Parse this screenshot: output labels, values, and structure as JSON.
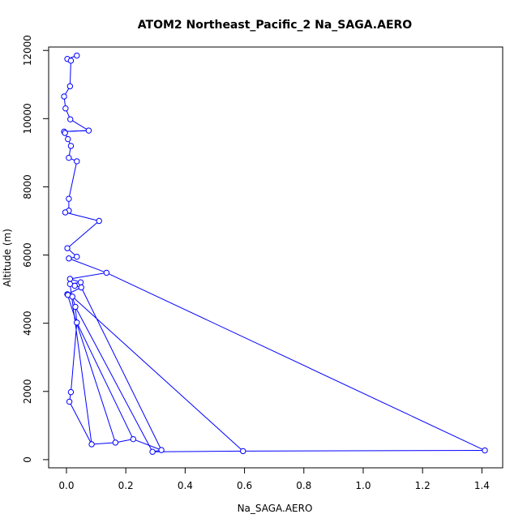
{
  "chart_data": {
    "type": "line",
    "title": "ATOM2 Northeast_Pacific_2 Na_SAGA.AERO",
    "xlabel": "Na_SAGA.AERO",
    "ylabel": "Altitude (m)",
    "xlim": [
      -0.06,
      1.47
    ],
    "ylim": [
      -240,
      12100
    ],
    "x_ticks": [
      0.0,
      0.2,
      0.4,
      0.6,
      0.8,
      1.0,
      1.2,
      1.4
    ],
    "x_tick_labels": [
      "0.0",
      "0.2",
      "0.4",
      "0.6",
      "0.8",
      "1.0",
      "1.2",
      "1.4"
    ],
    "y_ticks": [
      0,
      2000,
      4000,
      6000,
      8000,
      10000,
      12000
    ],
    "y_tick_labels": [
      "0",
      "2000",
      "4000",
      "6000",
      "8000",
      "10000",
      "12000"
    ],
    "grid": false,
    "legend": "none",
    "series_color": "#0000ff",
    "series": [
      {
        "marker": "open-circle",
        "line": true,
        "points": [
          {
            "x": 0.035,
            "y": 11850
          },
          {
            "x": 0.003,
            "y": 11750
          },
          {
            "x": 0.015,
            "y": 11700
          },
          {
            "x": 0.012,
            "y": 10950
          },
          {
            "x": -0.008,
            "y": 10650
          },
          {
            "x": -0.003,
            "y": 10300
          },
          {
            "x": 0.013,
            "y": 9980
          },
          {
            "x": 0.075,
            "y": 9650
          },
          {
            "x": -0.008,
            "y": 9620
          },
          {
            "x": -0.005,
            "y": 9580
          },
          {
            "x": 0.005,
            "y": 9400
          },
          {
            "x": 0.015,
            "y": 9200
          },
          {
            "x": 0.008,
            "y": 8850
          },
          {
            "x": 0.035,
            "y": 8750
          },
          {
            "x": 0.008,
            "y": 7650
          },
          {
            "x": 0.008,
            "y": 7300
          },
          {
            "x": -0.004,
            "y": 7250
          },
          {
            "x": 0.11,
            "y": 7000
          },
          {
            "x": 0.003,
            "y": 6200
          },
          {
            "x": 0.035,
            "y": 5950
          },
          {
            "x": 0.008,
            "y": 5900
          },
          {
            "x": 0.135,
            "y": 5480
          },
          {
            "x": 0.012,
            "y": 5300
          },
          {
            "x": 0.048,
            "y": 5200
          },
          {
            "x": 0.012,
            "y": 5150
          },
          {
            "x": 0.028,
            "y": 5100
          },
          {
            "x": 0.05,
            "y": 5050
          },
          {
            "x": 0.003,
            "y": 4850
          },
          {
            "x": 0.005,
            "y": 4830
          },
          {
            "x": 0.02,
            "y": 4780
          },
          {
            "x": 0.03,
            "y": 4480
          },
          {
            "x": 0.035,
            "y": 4020
          },
          {
            "x": 0.015,
            "y": 1980
          },
          {
            "x": 0.01,
            "y": 1700
          },
          {
            "x": 0.085,
            "y": 450
          },
          {
            "x": 0.165,
            "y": 500
          },
          {
            "x": 0.225,
            "y": 600
          },
          {
            "x": 0.32,
            "y": 280
          },
          {
            "x": 0.29,
            "y": 230
          },
          {
            "x": 0.595,
            "y": 250
          },
          {
            "x": 1.41,
            "y": 270
          }
        ],
        "connections": [
          [
            0,
            1
          ],
          [
            1,
            2
          ],
          [
            2,
            3
          ],
          [
            3,
            4
          ],
          [
            4,
            5
          ],
          [
            5,
            6
          ],
          [
            6,
            7
          ],
          [
            7,
            8
          ],
          [
            8,
            9
          ],
          [
            9,
            10
          ],
          [
            10,
            11
          ],
          [
            11,
            12
          ],
          [
            12,
            13
          ],
          [
            13,
            14
          ],
          [
            14,
            15
          ],
          [
            15,
            16
          ],
          [
            16,
            17
          ],
          [
            17,
            18
          ],
          [
            18,
            19
          ],
          [
            19,
            20
          ],
          [
            20,
            21
          ],
          [
            21,
            22
          ],
          [
            22,
            23
          ],
          [
            23,
            24
          ],
          [
            24,
            25
          ],
          [
            25,
            26
          ],
          [
            26,
            27
          ],
          [
            27,
            28
          ],
          [
            28,
            29
          ],
          [
            29,
            30
          ],
          [
            30,
            31
          ],
          [
            31,
            32
          ],
          [
            32,
            33
          ],
          [
            33,
            34
          ],
          [
            34,
            35
          ],
          [
            35,
            36
          ],
          [
            36,
            37
          ],
          [
            37,
            38
          ],
          [
            38,
            39
          ],
          [
            39,
            40
          ],
          [
            21,
            40
          ],
          [
            29,
            39
          ],
          [
            26,
            37
          ],
          [
            30,
            38
          ],
          [
            31,
            36
          ],
          [
            27,
            35
          ],
          [
            24,
            34
          ],
          [
            8,
            7
          ]
        ]
      }
    ]
  }
}
